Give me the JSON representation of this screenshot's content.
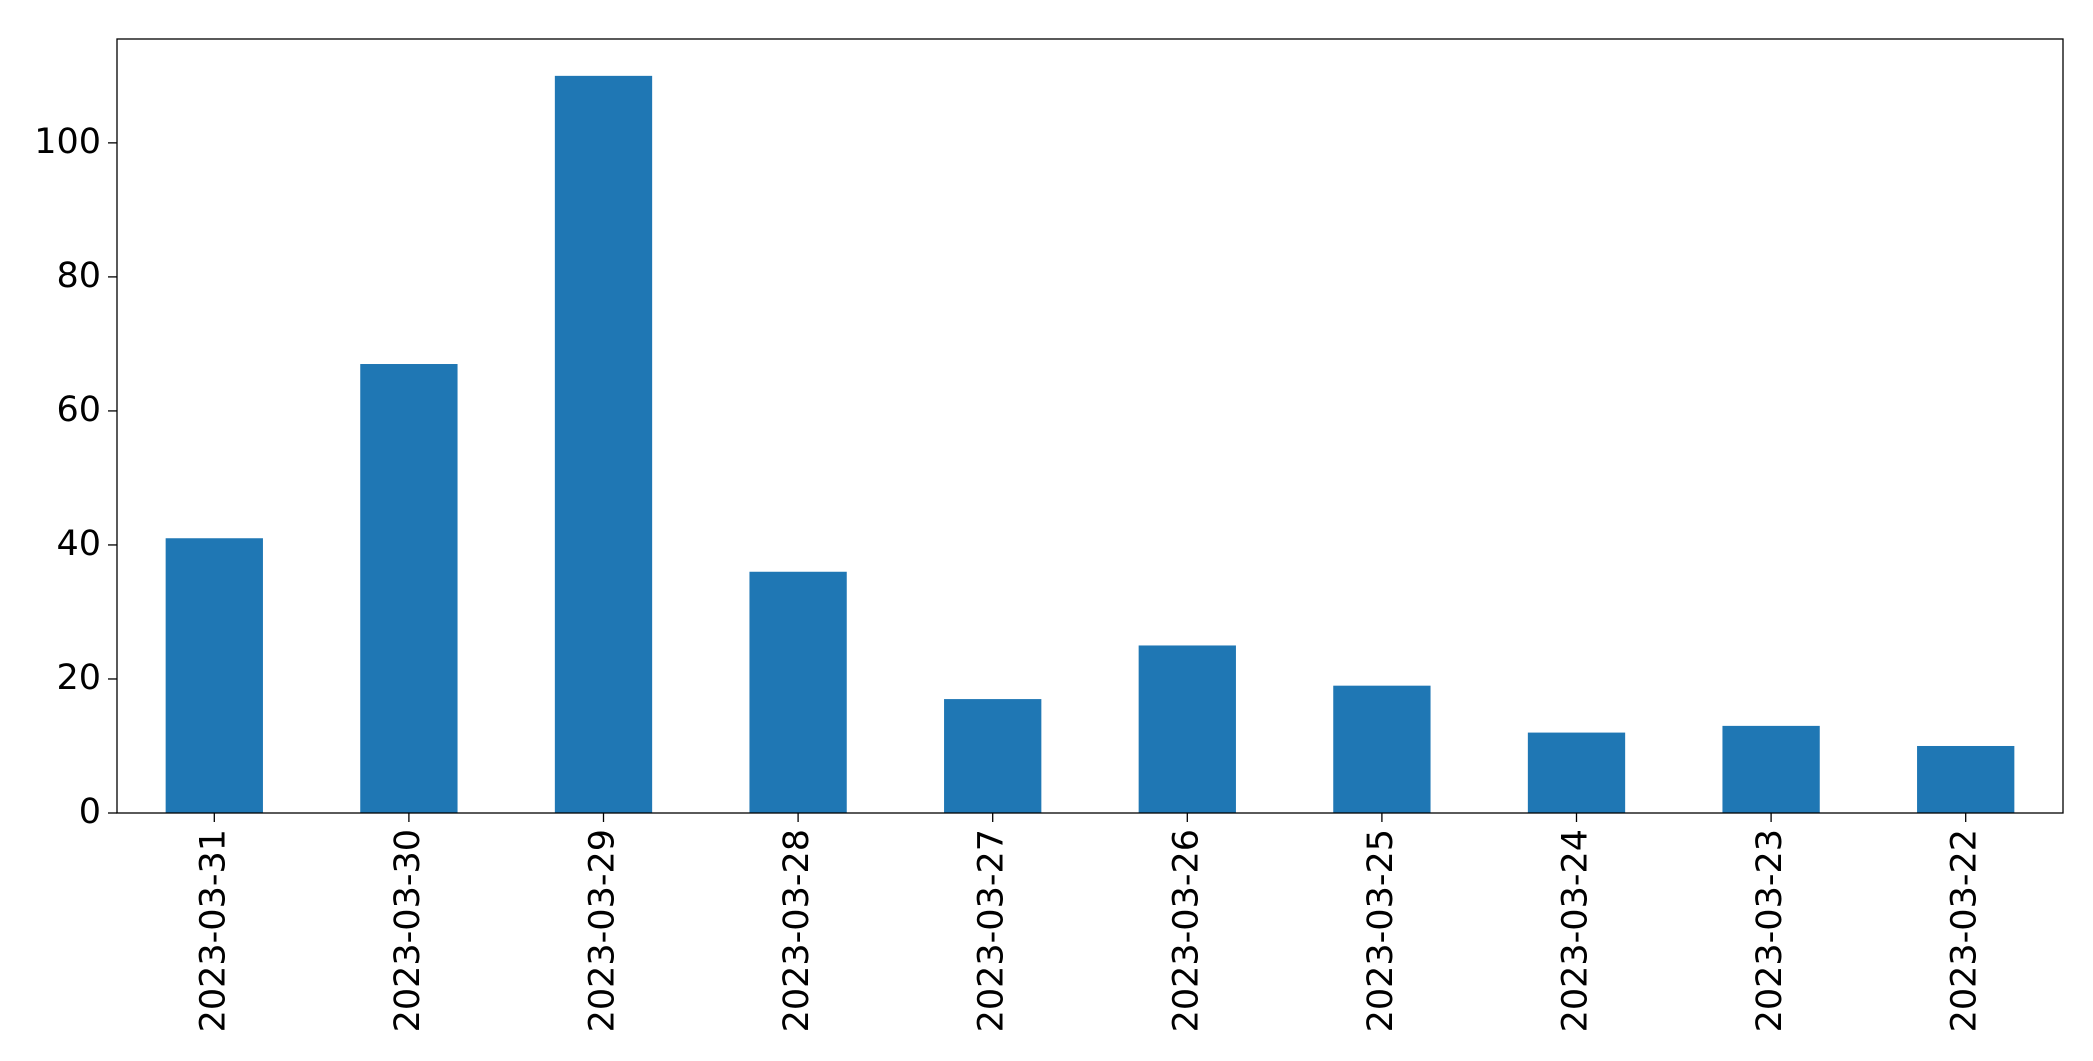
{
  "chart_data": {
    "type": "bar",
    "categories": [
      "2023-03-31",
      "2023-03-30",
      "2023-03-29",
      "2023-03-28",
      "2023-03-27",
      "2023-03-26",
      "2023-03-25",
      "2023-03-24",
      "2023-03-23",
      "2023-03-22"
    ],
    "values": [
      41,
      67,
      110,
      36,
      17,
      25,
      19,
      12,
      13,
      10
    ],
    "color": "#1f77b4",
    "ylim": [
      0,
      115.5
    ],
    "yticks": [
      0,
      20,
      40,
      60,
      80,
      100
    ],
    "grid": false
  }
}
